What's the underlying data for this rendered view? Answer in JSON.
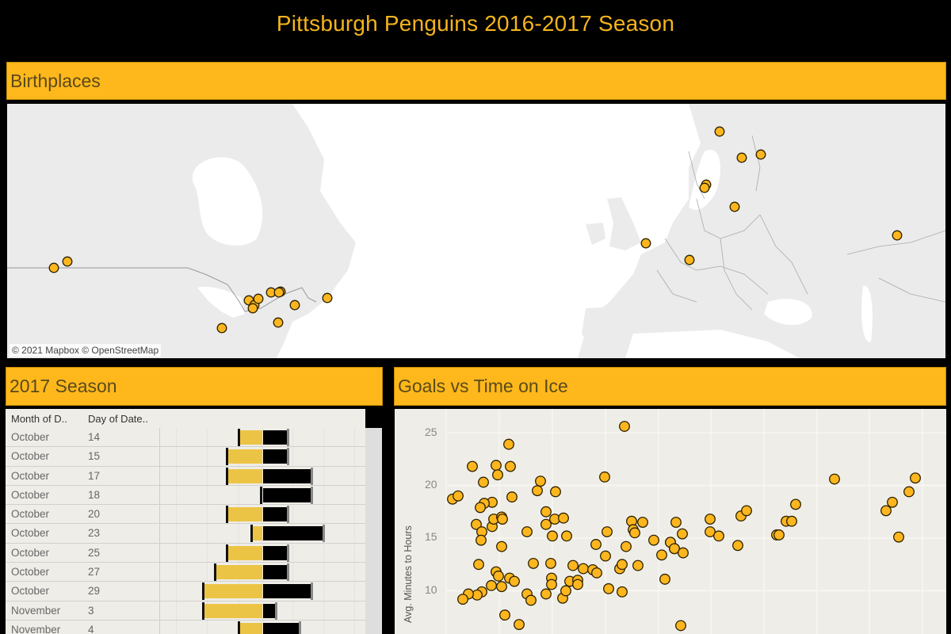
{
  "dashboard": {
    "title": "Pittsburgh Penguins 2016-2017 Season",
    "colors": {
      "background": "#000000",
      "accent": "#feb81c",
      "title_text": "#f5b41c",
      "banner_text": "#5b4a1a",
      "marker": "#fdb61e",
      "bar_gold": "#ecc445",
      "bar_black": "#000000"
    }
  },
  "birthplaces": {
    "title": "Birthplaces",
    "attribution": "© 2021 Mapbox  © OpenStreetMap",
    "points": [
      {
        "x": 59,
        "y": 207
      },
      {
        "x": 76,
        "y": 199
      },
      {
        "x": 305,
        "y": 248
      },
      {
        "x": 312,
        "y": 254
      },
      {
        "x": 317,
        "y": 246
      },
      {
        "x": 310,
        "y": 258
      },
      {
        "x": 333,
        "y": 238
      },
      {
        "x": 345,
        "y": 237
      },
      {
        "x": 343,
        "y": 238
      },
      {
        "x": 363,
        "y": 254
      },
      {
        "x": 342,
        "y": 276
      },
      {
        "x": 271,
        "y": 283
      },
      {
        "x": 404,
        "y": 245
      },
      {
        "x": 899,
        "y": 35
      },
      {
        "x": 927,
        "y": 68
      },
      {
        "x": 951,
        "y": 64
      },
      {
        "x": 882,
        "y": 102
      },
      {
        "x": 880,
        "y": 106
      },
      {
        "x": 918,
        "y": 130
      },
      {
        "x": 806,
        "y": 176
      },
      {
        "x": 861,
        "y": 197
      },
      {
        "x": 1123,
        "y": 166
      }
    ]
  },
  "season": {
    "title": "2017 Season",
    "columns": [
      "Month of D..",
      "Day of Date.."
    ],
    "rows": [
      {
        "month": "October",
        "day": "14",
        "gold": 28,
        "black": 30
      },
      {
        "month": "October",
        "day": "15",
        "gold": 43,
        "black": 30
      },
      {
        "month": "October",
        "day": "17",
        "gold": 43,
        "black": 60
      },
      {
        "month": "October",
        "day": "18",
        "gold": 0,
        "black": 60
      },
      {
        "month": "October",
        "day": "20",
        "gold": 43,
        "black": 30
      },
      {
        "month": "October",
        "day": "23",
        "gold": 12,
        "black": 75
      },
      {
        "month": "October",
        "day": "25",
        "gold": 43,
        "black": 30
      },
      {
        "month": "October",
        "day": "27",
        "gold": 58,
        "black": 30
      },
      {
        "month": "October",
        "day": "29",
        "gold": 73,
        "black": 60
      },
      {
        "month": "November",
        "day": "3",
        "gold": 73,
        "black": 15
      },
      {
        "month": "November",
        "day": "4",
        "gold": 28,
        "black": 45
      }
    ]
  },
  "goals": {
    "title": "Goals vs Time on Ice",
    "y_label": "Avg. Minutes to Hours",
    "y_ticks": [
      "25",
      "20",
      "15",
      "10"
    ]
  },
  "chart_data": {
    "type": "scatter",
    "title": "Goals vs Time on Ice",
    "xlabel": "",
    "ylabel": "Avg. Minutes to Hours",
    "y_ticks": [
      10,
      15,
      20,
      25
    ],
    "ylim": [
      5,
      27
    ],
    "grid": true,
    "note": "x values are plot-relative positions (x-axis labels not visible)",
    "points": [
      [
        73,
        18.7
      ],
      [
        80,
        19.0
      ],
      [
        98,
        21.8
      ],
      [
        112,
        20.3
      ],
      [
        128,
        21.9
      ],
      [
        130,
        21.0
      ],
      [
        144,
        23.9
      ],
      [
        146,
        21.8
      ],
      [
        148,
        18.9
      ],
      [
        123,
        18.4
      ],
      [
        113,
        18.3
      ],
      [
        108,
        17.9
      ],
      [
        103,
        16.3
      ],
      [
        110,
        15.6
      ],
      [
        109,
        14.8
      ],
      [
        123,
        16.1
      ],
      [
        125,
        16.8
      ],
      [
        135,
        17.0
      ],
      [
        136,
        16.8
      ],
      [
        135,
        14.2
      ],
      [
        106,
        12.5
      ],
      [
        128,
        11.8
      ],
      [
        131,
        11.4
      ],
      [
        122,
        10.5
      ],
      [
        135,
        10.4
      ],
      [
        145,
        11.2
      ],
      [
        151,
        10.9
      ],
      [
        110,
        9.9
      ],
      [
        104,
        9.6
      ],
      [
        93,
        9.7
      ],
      [
        86,
        9.2
      ],
      [
        139,
        7.7
      ],
      [
        157,
        6.8
      ],
      [
        167,
        15.6
      ],
      [
        180,
        19.5
      ],
      [
        184,
        20.4
      ],
      [
        203,
        19.4
      ],
      [
        191,
        17.5
      ],
      [
        191,
        16.3
      ],
      [
        202,
        16.8
      ],
      [
        213,
        16.9
      ],
      [
        199,
        15.2
      ],
      [
        217,
        15.2
      ],
      [
        175,
        12.6
      ],
      [
        197,
        12.6
      ],
      [
        225,
        12.4
      ],
      [
        238,
        12.1
      ],
      [
        250,
        12.0
      ],
      [
        255,
        11.7
      ],
      [
        198,
        11.2
      ],
      [
        198,
        10.6
      ],
      [
        221,
        10.9
      ],
      [
        231,
        11.0
      ],
      [
        231,
        10.6
      ],
      [
        167,
        9.7
      ],
      [
        172,
        9.1
      ],
      [
        191,
        9.7
      ],
      [
        212,
        9.3
      ],
      [
        216,
        10.0
      ],
      [
        254,
        14.4
      ],
      [
        266,
        13.3
      ],
      [
        270,
        10.2
      ],
      [
        287,
        9.9
      ],
      [
        284,
        12.1
      ],
      [
        287,
        12.5
      ],
      [
        292,
        14.2
      ],
      [
        307,
        12.4
      ],
      [
        268,
        15.6
      ],
      [
        265,
        20.8
      ],
      [
        290,
        25.6
      ],
      [
        299,
        16.6
      ],
      [
        301,
        15.8
      ],
      [
        303,
        15.5
      ],
      [
        313,
        16.5
      ],
      [
        327,
        14.8
      ],
      [
        337,
        13.4
      ],
      [
        341,
        11.1
      ],
      [
        348,
        14.6
      ],
      [
        353,
        14.0
      ],
      [
        355,
        16.5
      ],
      [
        363,
        15.4
      ],
      [
        348,
        14.6
      ],
      [
        353,
        14.0
      ],
      [
        364,
        13.6
      ],
      [
        361,
        6.7
      ],
      [
        398,
        16.8
      ],
      [
        398,
        15.6
      ],
      [
        409,
        15.2
      ],
      [
        433,
        14.3
      ],
      [
        437,
        17.1
      ],
      [
        444,
        17.6
      ],
      [
        482,
        15.3
      ],
      [
        485,
        15.3
      ],
      [
        494,
        16.6
      ],
      [
        501,
        16.6
      ],
      [
        506,
        18.2
      ],
      [
        555,
        20.6
      ],
      [
        620,
        17.6
      ],
      [
        628,
        18.4
      ],
      [
        649,
        19.4
      ],
      [
        657,
        20.7
      ],
      [
        636,
        15.1
      ]
    ]
  }
}
